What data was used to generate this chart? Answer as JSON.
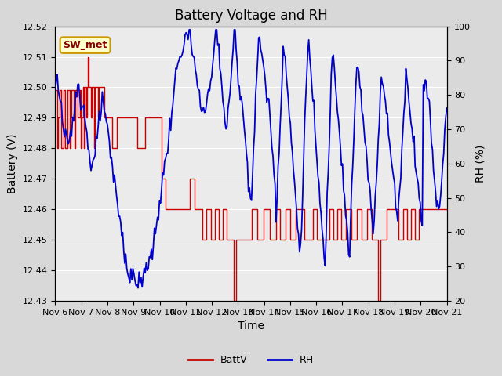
{
  "title": "Battery Voltage and RH",
  "xlabel": "Time",
  "ylabel_left": "Battery (V)",
  "ylabel_right": "RH (%)",
  "ylim_left": [
    12.43,
    12.52
  ],
  "ylim_right": [
    20,
    100
  ],
  "yticks_left": [
    12.43,
    12.44,
    12.45,
    12.46,
    12.47,
    12.48,
    12.49,
    12.5,
    12.51,
    12.52
  ],
  "yticks_right": [
    20,
    30,
    40,
    50,
    60,
    70,
    80,
    90,
    100
  ],
  "xtick_labels": [
    "Nov 6",
    "Nov 7",
    "Nov 8",
    "Nov 9",
    "Nov 10",
    "Nov 11",
    "Nov 12",
    "Nov 13",
    "Nov 14",
    "Nov 15",
    "Nov 16",
    "Nov 17",
    "Nov 18",
    "Nov 19",
    "Nov 20",
    "Nov 21"
  ],
  "batt_color": "#cc0000",
  "rh_color": "#0000cc",
  "bg_color": "#d8d8d8",
  "plot_bg": "#ebebeb",
  "grid_color": "#ffffff",
  "station_label": "SW_met",
  "station_label_bg": "#ffffcc",
  "station_label_border": "#cc9900",
  "legend_batt": "BattV",
  "legend_rh": "RH",
  "title_fontsize": 12,
  "label_fontsize": 10,
  "tick_fontsize": 8
}
